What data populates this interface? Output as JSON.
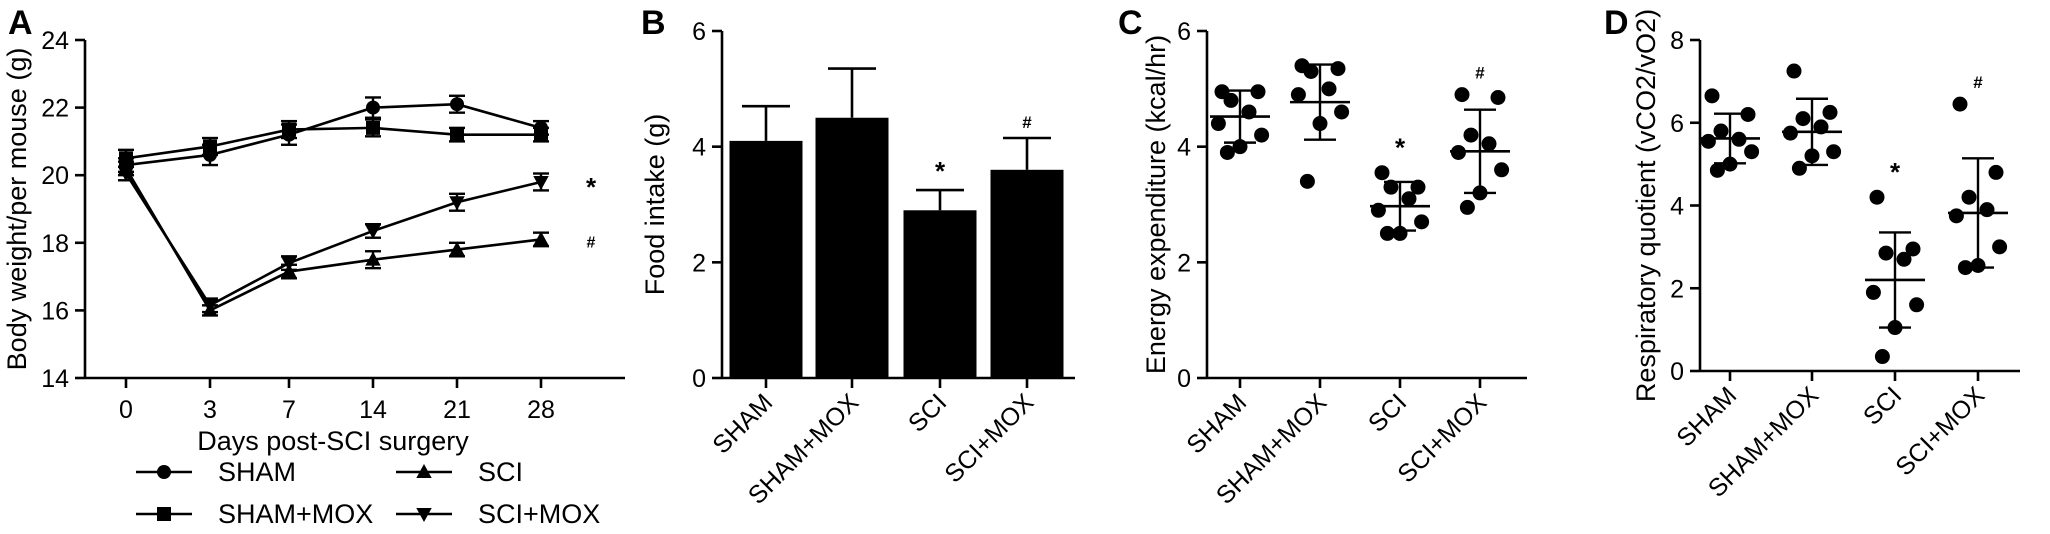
{
  "chart_data": [
    {
      "panel": "A",
      "type": "line",
      "title": "",
      "xlabel": "Days post-SCI surgery",
      "ylabel": "Body weight/per mouse (g)",
      "ylim": [
        14,
        24
      ],
      "yticks": [
        "14",
        "16",
        "18",
        "20",
        "22",
        "24"
      ],
      "categories": [
        "0",
        "3",
        "7",
        "14",
        "21",
        "28"
      ],
      "legend_position": "bottom",
      "series": [
        {
          "name": "SHAM",
          "marker": "circle",
          "values": [
            20.3,
            20.6,
            21.2,
            22.0,
            22.1,
            21.4
          ],
          "err": [
            0.2,
            0.3,
            0.3,
            0.3,
            0.25,
            0.2
          ]
        },
        {
          "name": "SHAM+MOX",
          "marker": "square",
          "values": [
            20.5,
            20.85,
            21.35,
            21.4,
            21.2,
            21.2
          ],
          "err": [
            0.25,
            0.25,
            0.25,
            0.25,
            0.2,
            0.2
          ]
        },
        {
          "name": "SCI",
          "marker": "triangle-up",
          "values": [
            20.2,
            16.0,
            17.15,
            17.5,
            17.8,
            18.1
          ],
          "err": [
            0.2,
            0.15,
            0.2,
            0.25,
            0.2,
            0.2
          ]
        },
        {
          "name": "SCI+MOX",
          "marker": "triangle-down",
          "values": [
            20.05,
            16.15,
            17.4,
            18.35,
            19.2,
            19.8
          ],
          "err": [
            0.2,
            0.2,
            0.2,
            0.2,
            0.25,
            0.25
          ]
        }
      ],
      "annotations": [
        {
          "text": "*",
          "series": "SCI+MOX",
          "at": "28"
        },
        {
          "text": "#",
          "series": "SCI",
          "at": "28"
        }
      ]
    },
    {
      "panel": "B",
      "type": "bar",
      "title": "",
      "xlabel": "",
      "ylabel": "Food intake (g)",
      "ylim": [
        0,
        6
      ],
      "yticks": [
        "0",
        "2",
        "4",
        "6"
      ],
      "categories": [
        "SHAM",
        "SHAM+MOX",
        "SCI",
        "SCI+MOX"
      ],
      "values": [
        4.1,
        4.5,
        2.9,
        3.6
      ],
      "err": [
        0.6,
        0.85,
        0.35,
        0.55
      ],
      "bar_color": "#000000",
      "annotations": [
        {
          "text": "*",
          "category": "SCI"
        },
        {
          "text": "#",
          "category": "SCI+MOX"
        }
      ]
    },
    {
      "panel": "C",
      "type": "scatter",
      "title": "",
      "xlabel": "",
      "ylabel": "Energy expenditure (kcal/hr)",
      "ylim": [
        0,
        6
      ],
      "yticks": [
        "0",
        "2",
        "4",
        "6"
      ],
      "categories": [
        "SHAM",
        "SHAM+MOX",
        "SCI",
        "SCI+MOX"
      ],
      "groups": [
        {
          "name": "SHAM",
          "points": [
            4.95,
            4.95,
            4.8,
            4.6,
            4.4,
            4.2,
            4.0,
            3.9
          ],
          "mean": 4.52,
          "sd": 0.45
        },
        {
          "name": "SHAM+MOX",
          "points": [
            5.4,
            5.35,
            5.3,
            5.0,
            4.9,
            4.6,
            4.4,
            3.4
          ],
          "mean": 4.77,
          "sd": 0.65
        },
        {
          "name": "SCI",
          "points": [
            3.55,
            3.3,
            3.3,
            3.1,
            2.9,
            2.7,
            2.5,
            2.5
          ],
          "mean": 2.97,
          "sd": 0.42
        },
        {
          "name": "SCI+MOX",
          "points": [
            4.9,
            4.85,
            4.2,
            4.05,
            3.9,
            3.6,
            3.2,
            2.95
          ],
          "mean": 3.92,
          "sd": 0.72
        }
      ],
      "annotations": [
        {
          "text": "*",
          "category": "SCI"
        },
        {
          "text": "#",
          "category": "SCI+MOX"
        }
      ]
    },
    {
      "panel": "D",
      "type": "scatter",
      "title": "",
      "xlabel": "",
      "ylabel": "Respiratory quotient (vCO2/vO2)",
      "ylim": [
        0,
        8
      ],
      "yticks": [
        "0",
        "2",
        "4",
        "6",
        "8"
      ],
      "categories": [
        "SHAM",
        "SHAM+MOX",
        "SCI",
        "SCI+MOX"
      ],
      "groups": [
        {
          "name": "SHAM",
          "points": [
            6.65,
            6.2,
            5.8,
            5.6,
            5.55,
            5.3,
            5.0,
            4.85
          ],
          "mean": 5.62,
          "sd": 0.6
        },
        {
          "name": "SHAM+MOX",
          "points": [
            7.25,
            6.25,
            6.1,
            5.9,
            5.75,
            5.3,
            5.2,
            4.9
          ],
          "mean": 5.78,
          "sd": 0.8
        },
        {
          "name": "SCI",
          "points": [
            4.2,
            2.95,
            2.85,
            2.7,
            1.9,
            1.6,
            1.05,
            0.35
          ],
          "mean": 2.2,
          "sd": 1.15
        },
        {
          "name": "SCI+MOX",
          "points": [
            6.45,
            4.8,
            4.2,
            3.9,
            3.75,
            3.0,
            2.55,
            2.5
          ],
          "mean": 3.82,
          "sd": 1.32
        }
      ],
      "annotations": [
        {
          "text": "*",
          "category": "SCI"
        },
        {
          "text": "#",
          "category": "SCI+MOX"
        }
      ]
    }
  ]
}
